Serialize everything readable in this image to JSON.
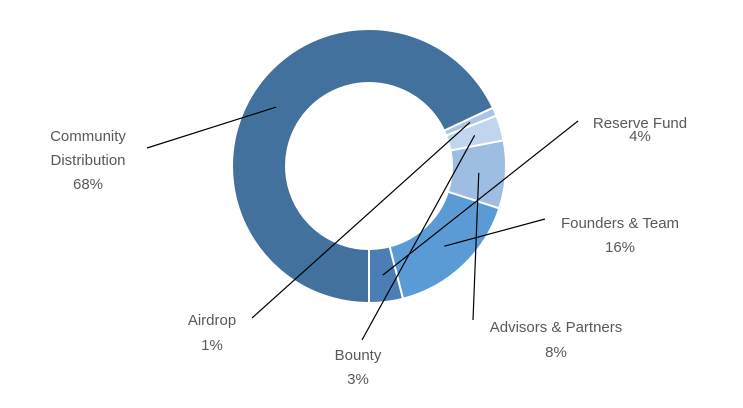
{
  "chart_data": {
    "type": "pie",
    "variant": "donut",
    "title": "",
    "legend": "none",
    "slices": [
      {
        "name": "Reserve Fund",
        "value": 4,
        "label": "4%",
        "color": "#4a7eb5"
      },
      {
        "name": "Founders & Team",
        "value": 16,
        "label": "16%",
        "color": "#5b9bd5"
      },
      {
        "name": "Advisors & Partners",
        "value": 8,
        "label": "8%",
        "color": "#9dbde3"
      },
      {
        "name": "Bounty",
        "value": 3,
        "label": "3%",
        "color": "#c2d5ee"
      },
      {
        "name": "Airdrop",
        "value": 1,
        "label": "1%",
        "color": "#a9c4e6"
      },
      {
        "name": "Community Distribution",
        "value": 68,
        "label": "68%",
        "color": "#41719c"
      }
    ]
  }
}
